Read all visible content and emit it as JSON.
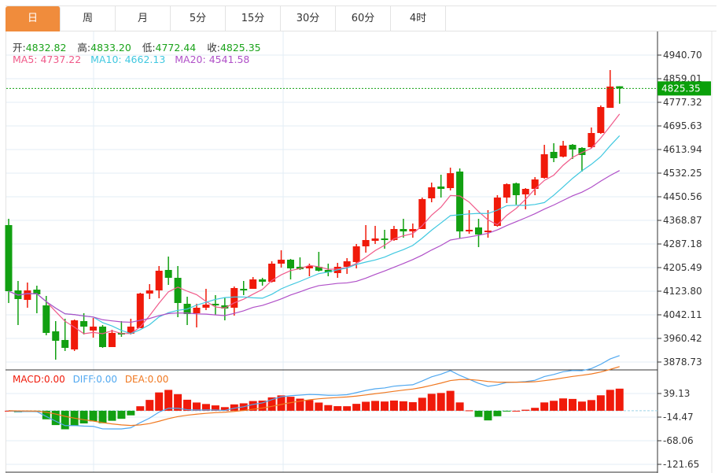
{
  "tabs": [
    {
      "label": "日",
      "active": true
    },
    {
      "label": "周"
    },
    {
      "label": "月"
    },
    {
      "label": "5分"
    },
    {
      "label": "15分"
    },
    {
      "label": "30分"
    },
    {
      "label": "60分"
    },
    {
      "label": "4时"
    }
  ],
  "ohlc_legend": {
    "open_label": "开:",
    "open": "4832.82",
    "high_label": "高:",
    "high": "4833.20",
    "low_label": "低:",
    "low": "4772.44",
    "close_label": "收:",
    "close": "4825.35"
  },
  "ma_legend": {
    "ma5": "MA5: 4737.22",
    "ma10": "MA10: 4662.13",
    "ma20": "MA20: 4541.58"
  },
  "macd_legend": {
    "macd": "MACD:0.00",
    "diff": "DIFF:0.00",
    "dea": "DEA:0.00"
  },
  "current_price_label": "4825.35",
  "colors": {
    "up": "#f01a0a",
    "down": "#12a012",
    "ma5": "#f05a8a",
    "ma10": "#40c8e0",
    "ma20": "#b050c8",
    "diff": "#50a8f0",
    "dea": "#f07820",
    "tab_active": "#f08c3c"
  },
  "chart_data": {
    "type": "candlestick",
    "price_axis_ticks": [
      "4940.70",
      "4859.01",
      "4777.32",
      "4695.63",
      "4613.94",
      "4532.25",
      "4450.56",
      "4368.87",
      "4287.18",
      "4205.49",
      "4123.80",
      "4042.11",
      "3960.42",
      "3878.73"
    ],
    "price_range": [
      3878.73,
      4940.7
    ],
    "macd_axis_ticks": [
      "39.13",
      "-14.47",
      "-68.06",
      "-121.65"
    ],
    "macd_range": [
      -121.65,
      39.13
    ],
    "candles_ohlc": [
      [
        4352.5,
        4374.3,
        4083.0,
        4123.8
      ],
      [
        4126.5,
        4159.2,
        4006.7,
        4096.6
      ],
      [
        4093.8,
        4153.8,
        4066.6,
        4126.5
      ],
      [
        4129.2,
        4142.9,
        4047.6,
        4112.9
      ],
      [
        4074.8,
        4107.5,
        3971.3,
        3979.5
      ],
      [
        3984.9,
        4020.3,
        3886.9,
        3952.3
      ],
      [
        3955.0,
        4028.5,
        3916.9,
        3927.7
      ],
      [
        3922.3,
        4025.8,
        3916.9,
        4023.0
      ],
      [
        4020.3,
        4047.6,
        3974.0,
        4001.3
      ],
      [
        3987.6,
        4031.2,
        3963.1,
        4001.3
      ],
      [
        4001.3,
        4006.7,
        3927.7,
        3930.5
      ],
      [
        3930.5,
        3990.4,
        3930.5,
        3979.5
      ],
      [
        3979.5,
        4020.3,
        3965.9,
        3974.0
      ],
      [
        3976.8,
        4028.5,
        3974.0,
        4001.3
      ],
      [
        3995.8,
        4118.4,
        3995.8,
        4115.6
      ],
      [
        4115.6,
        4148.3,
        4096.6,
        4126.5
      ],
      [
        4126.5,
        4210.9,
        4099.3,
        4194.6
      ],
      [
        4197.3,
        4243.6,
        4145.6,
        4170.1
      ],
      [
        4170.1,
        4210.9,
        4033.9,
        4083.0
      ],
      [
        4080.2,
        4104.7,
        4006.7,
        4044.8
      ],
      [
        4047.6,
        4080.2,
        3998.5,
        4066.6
      ],
      [
        4066.6,
        4132.0,
        4058.4,
        4077.5
      ],
      [
        4080.2,
        4110.2,
        4042.1,
        4074.8
      ],
      [
        4074.8,
        4102.0,
        4023.0,
        4063.9
      ],
      [
        4066.6,
        4140.1,
        4039.4,
        4134.7
      ],
      [
        4132.0,
        4159.2,
        4110.2,
        4129.2
      ],
      [
        4132.0,
        4172.8,
        4132.0,
        4164.6
      ],
      [
        4164.6,
        4170.1,
        4142.9,
        4156.5
      ],
      [
        4156.5,
        4227.3,
        4153.8,
        4219.1
      ],
      [
        4219.1,
        4265.4,
        4205.5,
        4232.7
      ],
      [
        4232.7,
        4235.4,
        4164.6,
        4202.8
      ],
      [
        4208.2,
        4240.9,
        4197.3,
        4200.0
      ],
      [
        4202.8,
        4219.1,
        4175.5,
        4210.9
      ],
      [
        4208.2,
        4259.9,
        4191.9,
        4194.6
      ],
      [
        4197.3,
        4219.1,
        4175.5,
        4189.2
      ],
      [
        4186.4,
        4221.8,
        4170.1,
        4208.2
      ],
      [
        4208.2,
        4238.2,
        4183.7,
        4227.3
      ],
      [
        4224.6,
        4287.2,
        4202.8,
        4279.0
      ],
      [
        4279.0,
        4352.5,
        4257.2,
        4300.8
      ],
      [
        4298.1,
        4349.8,
        4287.2,
        4306.2
      ],
      [
        4306.2,
        4336.2,
        4270.8,
        4300.8
      ],
      [
        4300.8,
        4349.8,
        4298.1,
        4338.9
      ],
      [
        4338.9,
        4374.3,
        4309.0,
        4330.7
      ],
      [
        4330.7,
        4358.0,
        4309.0,
        4338.9
      ],
      [
        4338.9,
        4447.8,
        4338.9,
        4442.4
      ],
      [
        4445.1,
        4499.6,
        4431.5,
        4483.2
      ],
      [
        4486.0,
        4526.8,
        4447.8,
        4477.8
      ],
      [
        4480.5,
        4551.3,
        4472.3,
        4532.2
      ],
      [
        4537.7,
        4548.6,
        4306.2,
        4330.7
      ],
      [
        4333.5,
        4404.3,
        4322.6,
        4336.2
      ],
      [
        4344.4,
        4374.3,
        4276.3,
        4319.9
      ],
      [
        4330.7,
        4404.3,
        4309.0,
        4333.5
      ],
      [
        4349.8,
        4456.0,
        4347.1,
        4447.8
      ],
      [
        4447.8,
        4496.9,
        4428.8,
        4494.1
      ],
      [
        4496.9,
        4499.6,
        4423.3,
        4456.0
      ],
      [
        4458.7,
        4480.5,
        4407.0,
        4477.8
      ],
      [
        4477.8,
        4518.6,
        4456.0,
        4510.5
      ],
      [
        4515.9,
        4630.3,
        4513.2,
        4597.6
      ],
      [
        4605.8,
        4635.7,
        4570.4,
        4584.0
      ],
      [
        4589.4,
        4643.9,
        4586.7,
        4627.6
      ],
      [
        4630.3,
        4633.0,
        4581.3,
        4613.9
      ],
      [
        4619.4,
        4622.1,
        4537.7,
        4594.9
      ],
      [
        4622.1,
        4690.2,
        4619.4,
        4671.1
      ],
      [
        4671.1,
        4766.4,
        4668.4,
        4761.0
      ],
      [
        4758.3,
        4889.0,
        4758.3,
        4831.8
      ],
      [
        4832.82,
        4833.2,
        4772.44,
        4825.35
      ]
    ],
    "ma_periods": [
      5,
      10,
      20
    ],
    "macd_params": [
      12,
      26,
      9
    ]
  }
}
